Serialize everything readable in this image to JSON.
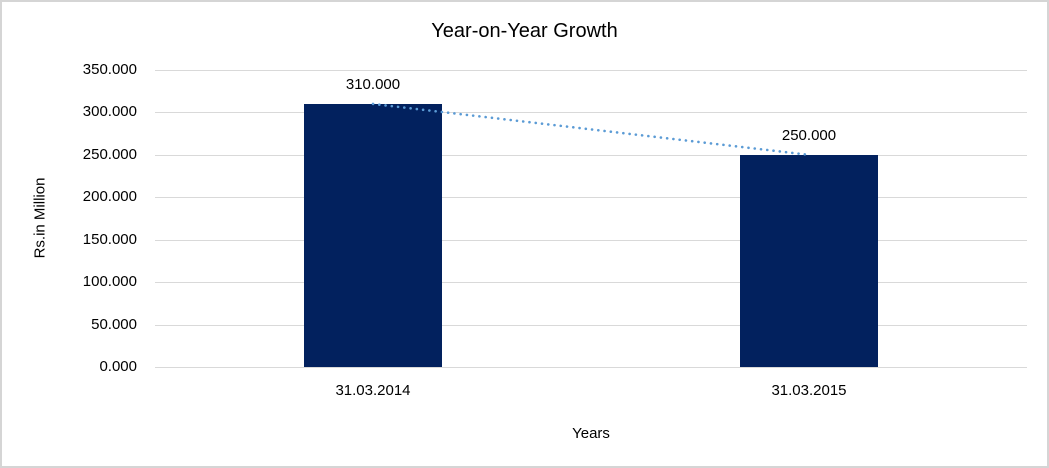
{
  "chart_data": {
    "type": "bar",
    "title": "Year-on-Year Growth",
    "xlabel": "Years",
    "ylabel": "Rs.in Million",
    "categories": [
      "31.03.2014",
      "31.03.2015"
    ],
    "values": [
      310,
      250
    ],
    "data_labels": [
      "310.000",
      "250.000"
    ],
    "ylim": [
      0,
      350
    ],
    "y_tick_step": 50,
    "y_ticks": [
      {
        "value": 350,
        "label": "350.000"
      },
      {
        "value": 300,
        "label": "300.000"
      },
      {
        "value": 250,
        "label": "250.000"
      },
      {
        "value": 200,
        "label": "200.000"
      },
      {
        "value": 150,
        "label": "150.000"
      },
      {
        "value": 100,
        "label": "100.000"
      },
      {
        "value": 50,
        "label": "50.000"
      },
      {
        "value": 0,
        "label": "0.000"
      }
    ],
    "grid": true,
    "legend": false,
    "colors": {
      "bar": "#02215E",
      "trendline": "#5B9BD5",
      "gridline": "#D9D9D9",
      "text": "#000000",
      "frame_border": "#D5D5D5",
      "background": "#FFFFFF"
    },
    "trendline": {
      "style": "dotted",
      "connects": "bar tops",
      "from_value": 310,
      "to_value": 250
    }
  }
}
